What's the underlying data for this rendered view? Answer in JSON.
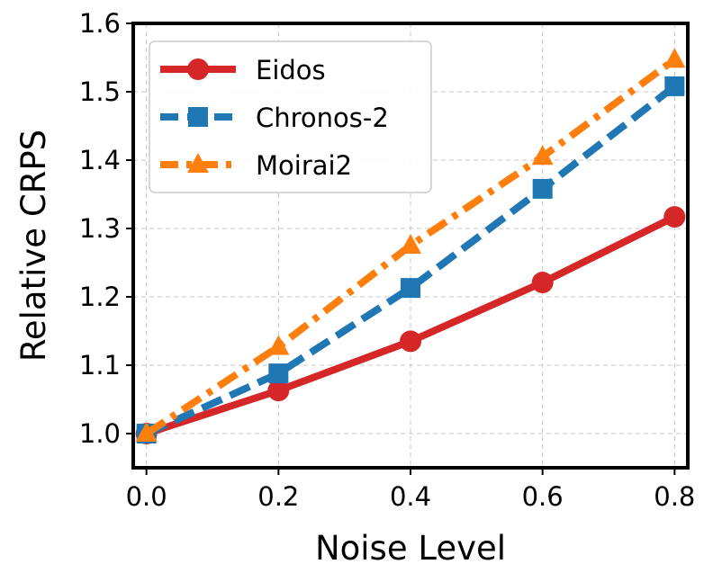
{
  "chart_data": {
    "type": "line",
    "title": "",
    "xlabel": "Noise Level",
    "ylabel": "Relative CRPS",
    "x": [
      0.0,
      0.2,
      0.4,
      0.6,
      0.8
    ],
    "xticks": [
      0.0,
      0.2,
      0.4,
      0.6,
      0.8
    ],
    "xtick_labels": [
      "0.0",
      "0.2",
      "0.4",
      "0.6",
      "0.8"
    ],
    "yticks": [
      1.0,
      1.1,
      1.2,
      1.3,
      1.4,
      1.5,
      1.6
    ],
    "ytick_labels": [
      "1.0",
      "1.1",
      "1.2",
      "1.3",
      "1.4",
      "1.5",
      "1.6"
    ],
    "xlim": [
      -0.02,
      0.82
    ],
    "ylim": [
      0.95,
      1.6
    ],
    "grid": true,
    "legend_position": "top-left",
    "series": [
      {
        "name": "Eidos",
        "values": [
          1.0,
          1.063,
          1.135,
          1.221,
          1.317
        ],
        "color": "#d62728",
        "marker": "circle",
        "linestyle": "solid"
      },
      {
        "name": "Chronos-2",
        "values": [
          1.0,
          1.088,
          1.213,
          1.358,
          1.508
        ],
        "color": "#1f77b4",
        "marker": "square",
        "linestyle": "dashed"
      },
      {
        "name": "Moirai2",
        "values": [
          1.0,
          1.127,
          1.275,
          1.405,
          1.547
        ],
        "color": "#ff7f0e",
        "marker": "triangle",
        "linestyle": "dashdot"
      }
    ]
  }
}
